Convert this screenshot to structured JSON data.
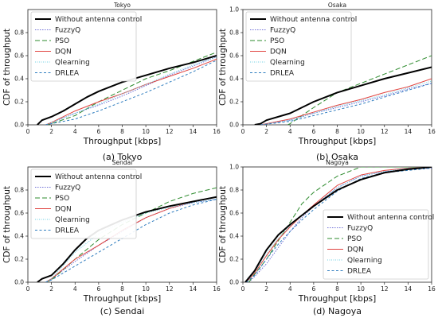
{
  "figure": {
    "panels": [
      {
        "caption": "(a) Tokyo",
        "legend_position": "top-left"
      },
      {
        "caption": "(b) Osaka",
        "legend_position": "top-left"
      },
      {
        "caption": "(c) Sendai",
        "legend_position": "top-left"
      },
      {
        "caption": "(d) Nagoya",
        "legend_position": "bottom-right"
      }
    ]
  },
  "series_styles": [
    {
      "name": "Without antenna control",
      "color": "#000000",
      "dash": "",
      "width": 2.0
    },
    {
      "name": "FuzzyQ",
      "color": "#6f6fd6",
      "dash": "1.5,1.5",
      "width": 1.0
    },
    {
      "name": "PSO",
      "color": "#2e8b2e",
      "dash": "6,3",
      "width": 1.0
    },
    {
      "name": "DQN",
      "color": "#e0433f",
      "dash": "",
      "width": 1.0
    },
    {
      "name": "Qlearning",
      "color": "#6fd0e3",
      "dash": "1,1.5",
      "width": 1.0
    },
    {
      "name": "DRLEA",
      "color": "#2f7dbf",
      "dash": "3,2.5",
      "width": 1.0
    }
  ],
  "chart_data": [
    {
      "type": "line",
      "title": "Tokyo",
      "xlabel": "Throughput [kbps]",
      "ylabel": "CDF of throughput",
      "xlim": [
        0,
        16
      ],
      "ylim": [
        0,
        1.0
      ],
      "xticks": [
        "0",
        "2",
        "4",
        "6",
        "8",
        "10",
        "12",
        "14",
        "16"
      ],
      "yticks": [
        "0.0",
        "0.2",
        "0.4",
        "0.6",
        "0.8"
      ],
      "grid": false,
      "series": [
        {
          "name": "Without antenna control",
          "x": [
            0.8,
            1.2,
            2,
            3,
            4,
            5,
            6,
            8,
            10,
            12,
            14,
            16
          ],
          "y": [
            0,
            0.04,
            0.07,
            0.12,
            0.18,
            0.24,
            0.29,
            0.37,
            0.43,
            0.49,
            0.54,
            0.6
          ]
        },
        {
          "name": "FuzzyQ",
          "x": [
            1.5,
            2,
            4,
            6,
            8,
            10,
            12,
            14,
            16
          ],
          "y": [
            0,
            0.02,
            0.1,
            0.17,
            0.25,
            0.34,
            0.43,
            0.51,
            0.59
          ]
        },
        {
          "name": "PSO",
          "x": [
            1.5,
            2,
            4,
            6,
            8,
            10,
            12,
            14,
            16
          ],
          "y": [
            0,
            0.01,
            0.08,
            0.2,
            0.3,
            0.4,
            0.47,
            0.55,
            0.63
          ]
        },
        {
          "name": "DQN",
          "x": [
            1.5,
            2,
            4,
            6,
            8,
            10,
            12,
            14,
            16
          ],
          "y": [
            0,
            0.02,
            0.12,
            0.2,
            0.27,
            0.35,
            0.42,
            0.49,
            0.57
          ]
        },
        {
          "name": "Qlearning",
          "x": [
            1.5,
            2,
            4,
            6,
            8,
            10,
            12,
            14,
            16
          ],
          "y": [
            0,
            0.02,
            0.1,
            0.18,
            0.27,
            0.35,
            0.44,
            0.52,
            0.59
          ]
        },
        {
          "name": "DRLEA",
          "x": [
            1.5,
            2,
            4,
            6,
            8,
            10,
            12,
            14,
            16
          ],
          "y": [
            0,
            0.01,
            0.05,
            0.12,
            0.2,
            0.28,
            0.37,
            0.46,
            0.56
          ]
        }
      ]
    },
    {
      "type": "line",
      "title": "Osaka",
      "xlabel": "Throughput [kbps]",
      "ylabel": "CDF of throughput",
      "xlim": [
        0,
        16
      ],
      "ylim": [
        0,
        1.0
      ],
      "xticks": [
        "0",
        "2",
        "4",
        "6",
        "8",
        "10",
        "12",
        "14",
        "16"
      ],
      "yticks": [
        "0.0",
        "0.2",
        "0.4",
        "0.6",
        "0.8",
        "1.0"
      ],
      "grid": false,
      "series": [
        {
          "name": "Without antenna control",
          "x": [
            1,
            1.5,
            2,
            4,
            5,
            6,
            8,
            10,
            12,
            14,
            16
          ],
          "y": [
            0,
            0.01,
            0.04,
            0.1,
            0.15,
            0.2,
            0.28,
            0.34,
            0.4,
            0.45,
            0.5
          ]
        },
        {
          "name": "FuzzyQ",
          "x": [
            1.5,
            4,
            6,
            8,
            10,
            12,
            14,
            16
          ],
          "y": [
            0,
            0.04,
            0.1,
            0.15,
            0.2,
            0.25,
            0.31,
            0.36
          ]
        },
        {
          "name": "PSO",
          "x": [
            3.8,
            4,
            6,
            8,
            10,
            12,
            14,
            16
          ],
          "y": [
            0,
            0.01,
            0.15,
            0.28,
            0.36,
            0.44,
            0.52,
            0.6
          ]
        },
        {
          "name": "DQN",
          "x": [
            1.5,
            4,
            6,
            8,
            10,
            12,
            14,
            16
          ],
          "y": [
            0,
            0.05,
            0.11,
            0.17,
            0.22,
            0.28,
            0.33,
            0.4
          ]
        },
        {
          "name": "Qlearning",
          "x": [
            1.5,
            4,
            6,
            8,
            10,
            12,
            14,
            16
          ],
          "y": [
            0,
            0.04,
            0.1,
            0.16,
            0.21,
            0.26,
            0.32,
            0.38
          ]
        },
        {
          "name": "DRLEA",
          "x": [
            1.5,
            4,
            6,
            8,
            10,
            12,
            14,
            16
          ],
          "y": [
            0,
            0.03,
            0.08,
            0.13,
            0.18,
            0.24,
            0.3,
            0.36
          ]
        }
      ]
    },
    {
      "type": "line",
      "title": "Sendai",
      "xlabel": "Throughput [kbps]",
      "ylabel": "CDF of throughput",
      "xlim": [
        0,
        16
      ],
      "ylim": [
        0,
        1.0
      ],
      "xticks": [
        "0",
        "2",
        "4",
        "6",
        "8",
        "10",
        "12",
        "14",
        "16"
      ],
      "yticks": [
        "0.0",
        "0.2",
        "0.4",
        "0.6",
        "0.8"
      ],
      "grid": false,
      "series": [
        {
          "name": "Without antenna control",
          "x": [
            0.8,
            1.2,
            2,
            3,
            4,
            5,
            6,
            8,
            10,
            12,
            14,
            16
          ],
          "y": [
            0,
            0.03,
            0.06,
            0.16,
            0.28,
            0.38,
            0.45,
            0.54,
            0.61,
            0.66,
            0.7,
            0.74
          ]
        },
        {
          "name": "FuzzyQ",
          "x": [
            1.5,
            2,
            4,
            6,
            8,
            10,
            12,
            14,
            16
          ],
          "y": [
            0,
            0.03,
            0.18,
            0.32,
            0.44,
            0.56,
            0.64,
            0.69,
            0.72
          ]
        },
        {
          "name": "PSO",
          "x": [
            1.5,
            2,
            4,
            6,
            8,
            10,
            12,
            14,
            16
          ],
          "y": [
            0,
            0.02,
            0.2,
            0.37,
            0.5,
            0.6,
            0.7,
            0.77,
            0.82
          ]
        },
        {
          "name": "DQN",
          "x": [
            1.5,
            2,
            4,
            6,
            8,
            10,
            12,
            14,
            16
          ],
          "y": [
            0,
            0.03,
            0.2,
            0.32,
            0.45,
            0.56,
            0.64,
            0.7,
            0.74
          ]
        },
        {
          "name": "Qlearning",
          "x": [
            1.5,
            2,
            4,
            6,
            8,
            10,
            12,
            14,
            16
          ],
          "y": [
            0,
            0.03,
            0.26,
            0.42,
            0.52,
            0.6,
            0.65,
            0.69,
            0.72
          ]
        },
        {
          "name": "DRLEA",
          "x": [
            1.5,
            2,
            4,
            6,
            8,
            10,
            12,
            14,
            16
          ],
          "y": [
            0,
            0.02,
            0.14,
            0.26,
            0.38,
            0.5,
            0.6,
            0.67,
            0.72
          ]
        }
      ]
    },
    {
      "type": "line",
      "title": "Nagoya",
      "xlabel": "Throughput [kbps]",
      "ylabel": "CDF of throughput",
      "xlim": [
        0,
        16
      ],
      "ylim": [
        0,
        1.0
      ],
      "xticks": [
        "0",
        "2",
        "4",
        "6",
        "8",
        "10",
        "12",
        "14",
        "16"
      ],
      "yticks": [
        "0.0",
        "0.2",
        "0.4",
        "0.6",
        "0.8",
        "1.0"
      ],
      "grid": false,
      "series": [
        {
          "name": "Without antenna control",
          "x": [
            0.2,
            1,
            2,
            3,
            4,
            5,
            6,
            8,
            10,
            12,
            14,
            16
          ],
          "y": [
            0,
            0.1,
            0.28,
            0.41,
            0.5,
            0.58,
            0.66,
            0.8,
            0.89,
            0.95,
            0.98,
            1.0
          ]
        },
        {
          "name": "FuzzyQ",
          "x": [
            0.5,
            1,
            2,
            3,
            4,
            5,
            6,
            8,
            10,
            12,
            14,
            16
          ],
          "y": [
            0,
            0.05,
            0.16,
            0.3,
            0.44,
            0.56,
            0.66,
            0.82,
            0.92,
            0.96,
            0.98,
            0.99
          ]
        },
        {
          "name": "PSO",
          "x": [
            0.5,
            1,
            2,
            3,
            4,
            5,
            6,
            8,
            10,
            12,
            14,
            16
          ],
          "y": [
            0,
            0.07,
            0.2,
            0.36,
            0.52,
            0.68,
            0.78,
            0.92,
            1.0,
            1.0,
            1.0,
            1.0
          ]
        },
        {
          "name": "DQN",
          "x": [
            0.3,
            1,
            2,
            3,
            4,
            5,
            6,
            8,
            10,
            12,
            14,
            16
          ],
          "y": [
            0,
            0.08,
            0.23,
            0.37,
            0.48,
            0.58,
            0.67,
            0.84,
            0.93,
            0.97,
            0.99,
            1.0
          ]
        },
        {
          "name": "Qlearning",
          "x": [
            0.3,
            1,
            2,
            3,
            4,
            5,
            6,
            8,
            10,
            12,
            14,
            16
          ],
          "y": [
            0,
            0.09,
            0.25,
            0.38,
            0.49,
            0.58,
            0.66,
            0.82,
            0.92,
            0.96,
            0.99,
            1.0
          ]
        },
        {
          "name": "DRLEA",
          "x": [
            0.3,
            1,
            2,
            3,
            4,
            5,
            6,
            8,
            10,
            12,
            14,
            16
          ],
          "y": [
            0,
            0.06,
            0.2,
            0.33,
            0.44,
            0.54,
            0.63,
            0.79,
            0.9,
            0.95,
            0.97,
            0.99
          ]
        }
      ]
    }
  ]
}
